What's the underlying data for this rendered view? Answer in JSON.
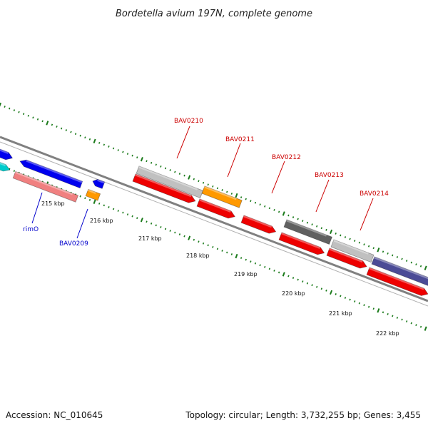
{
  "title": "Bordetella avium 197N, complete genome",
  "footer": {
    "accession": "Accession: NC_010645",
    "summary": "Topology: circular; Length: 3,732,255 bp; Genes: 3,455"
  },
  "colors": {
    "forward_label": "#cc0000",
    "reverse_label": "#0000cc",
    "ticks": "#1a7a1a",
    "backbone": "#808080"
  },
  "kbp_labels": [
    "215 kbp",
    "216 kbp",
    "217 kbp",
    "218 kbp",
    "219 kbp",
    "220 kbp",
    "221 kbp",
    "222 kbp"
  ],
  "gene_labels": [
    {
      "text": "BAV0210",
      "strand": "forward"
    },
    {
      "text": "BAV0211",
      "strand": "forward"
    },
    {
      "text": "BAV0212",
      "strand": "forward"
    },
    {
      "text": "BAV0213",
      "strand": "forward"
    },
    {
      "text": "BAV0214",
      "strand": "forward"
    },
    {
      "text": "rimO",
      "strand": "reverse"
    },
    {
      "text": "BAV0209",
      "strand": "reverse"
    }
  ],
  "features": [
    {
      "type": "gene",
      "strand": "forward",
      "color": "#c0c0c0"
    },
    {
      "type": "gene",
      "strand": "forward",
      "color": "#ff9900"
    },
    {
      "type": "gene",
      "strand": "forward",
      "color": "#606060"
    },
    {
      "type": "gene",
      "strand": "forward",
      "color": "#c0c0c0"
    },
    {
      "type": "gene",
      "strand": "forward",
      "color": "#4b4b96"
    },
    {
      "type": "cds",
      "strand": "forward",
      "color": "#ee0000"
    },
    {
      "type": "cds",
      "strand": "forward",
      "color": "#ee0000"
    },
    {
      "type": "cds",
      "strand": "forward",
      "color": "#ee0000"
    },
    {
      "type": "cds",
      "strand": "forward",
      "color": "#ee0000"
    },
    {
      "type": "cds",
      "strand": "forward",
      "color": "#ee0000"
    },
    {
      "type": "cds",
      "strand": "forward",
      "color": "#ee0000"
    },
    {
      "type": "gene",
      "strand": "reverse",
      "color": "#0000ee"
    },
    {
      "type": "gene",
      "strand": "reverse",
      "color": "#00cccc"
    },
    {
      "type": "gene",
      "strand": "reverse",
      "color": "#f08080"
    },
    {
      "type": "gene",
      "strand": "reverse",
      "color": "#ff9900"
    },
    {
      "type": "cds",
      "strand": "reverse",
      "color": "#0000ee"
    },
    {
      "type": "cds",
      "strand": "reverse",
      "color": "#0000ee"
    }
  ]
}
